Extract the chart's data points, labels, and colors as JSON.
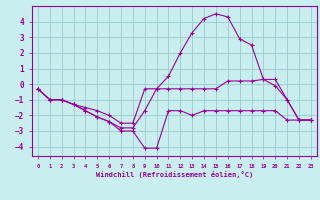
{
  "bg_color": "#c8eef0",
  "line_color": "#990099",
  "grid_color": "#99cccc",
  "xlabel": "Windchill (Refroidissement éolien,°C)",
  "xlabel_color": "#990099",
  "tick_color": "#990099",
  "xlim": [
    -0.5,
    23.5
  ],
  "ylim": [
    -4.6,
    5.0
  ],
  "yticks": [
    -4,
    -3,
    -2,
    -1,
    0,
    1,
    2,
    3,
    4
  ],
  "xticks": [
    0,
    1,
    2,
    3,
    4,
    5,
    6,
    7,
    8,
    9,
    10,
    11,
    12,
    13,
    14,
    15,
    16,
    17,
    18,
    19,
    20,
    21,
    22,
    23
  ],
  "line1_x": [
    0,
    1,
    2,
    3,
    4,
    5,
    6,
    7,
    8,
    9,
    10,
    11,
    12,
    13,
    14,
    15,
    16,
    17,
    18,
    19,
    20,
    21,
    22,
    23
  ],
  "line1_y": [
    -0.3,
    -1.0,
    -1.0,
    -1.3,
    -1.7,
    -2.1,
    -2.4,
    -3.0,
    -3.0,
    -4.1,
    -4.1,
    -1.7,
    -1.7,
    -2.0,
    -1.7,
    -1.7,
    -1.7,
    -1.7,
    -1.7,
    -1.7,
    -1.7,
    -2.3,
    -2.3,
    -2.3
  ],
  "line2_x": [
    0,
    1,
    2,
    3,
    4,
    5,
    6,
    7,
    8,
    9,
    10,
    11,
    12,
    13,
    14,
    15,
    16,
    17,
    18,
    19,
    20,
    21,
    22,
    23
  ],
  "line2_y": [
    -0.3,
    -1.0,
    -1.0,
    -1.3,
    -1.7,
    -2.1,
    -2.4,
    -2.8,
    -2.8,
    -1.7,
    -0.3,
    0.5,
    2.0,
    3.3,
    4.2,
    4.5,
    4.3,
    2.9,
    2.5,
    0.3,
    -0.1,
    -1.0,
    -2.3,
    -2.3
  ],
  "line3_x": [
    0,
    1,
    2,
    3,
    4,
    5,
    6,
    7,
    8,
    9,
    10,
    11,
    12,
    13,
    14,
    15,
    16,
    17,
    18,
    19,
    20,
    21,
    22,
    23
  ],
  "line3_y": [
    -0.3,
    -1.0,
    -1.0,
    -1.3,
    -1.5,
    -1.7,
    -2.0,
    -2.5,
    -2.5,
    -0.3,
    -0.3,
    -0.3,
    -0.3,
    -0.3,
    -0.3,
    -0.3,
    0.2,
    0.2,
    0.2,
    0.3,
    0.3,
    -1.0,
    -2.3,
    -2.3
  ]
}
